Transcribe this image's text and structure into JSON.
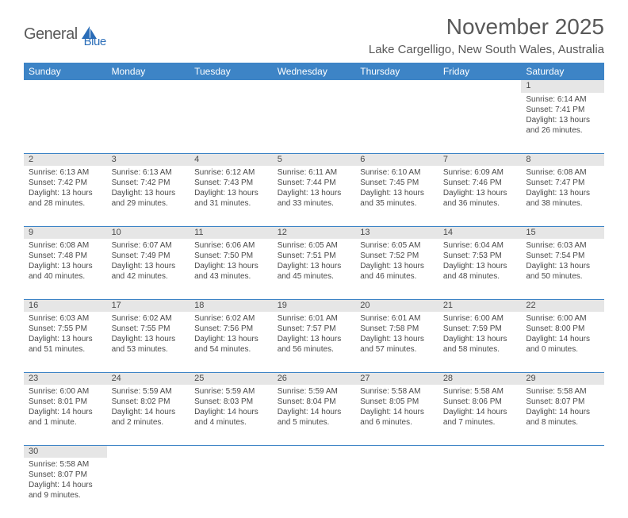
{
  "logo": {
    "part1": "General",
    "part2": "Blue"
  },
  "title": "November 2025",
  "location": "Lake Cargelligo, New South Wales, Australia",
  "colors": {
    "header_bg": "#3d84c6",
    "header_text": "#ffffff",
    "daynum_bg": "#e6e6e6",
    "text": "#4a4a4a",
    "rule": "#3d84c6",
    "logo_gray": "#5a5a5a",
    "logo_blue": "#2a6db8"
  },
  "days_of_week": [
    "Sunday",
    "Monday",
    "Tuesday",
    "Wednesday",
    "Thursday",
    "Friday",
    "Saturday"
  ],
  "weeks": [
    [
      null,
      null,
      null,
      null,
      null,
      null,
      {
        "n": "1",
        "sr": "Sunrise: 6:14 AM",
        "ss": "Sunset: 7:41 PM",
        "d1": "Daylight: 13 hours",
        "d2": "and 26 minutes."
      }
    ],
    [
      {
        "n": "2",
        "sr": "Sunrise: 6:13 AM",
        "ss": "Sunset: 7:42 PM",
        "d1": "Daylight: 13 hours",
        "d2": "and 28 minutes."
      },
      {
        "n": "3",
        "sr": "Sunrise: 6:13 AM",
        "ss": "Sunset: 7:42 PM",
        "d1": "Daylight: 13 hours",
        "d2": "and 29 minutes."
      },
      {
        "n": "4",
        "sr": "Sunrise: 6:12 AM",
        "ss": "Sunset: 7:43 PM",
        "d1": "Daylight: 13 hours",
        "d2": "and 31 minutes."
      },
      {
        "n": "5",
        "sr": "Sunrise: 6:11 AM",
        "ss": "Sunset: 7:44 PM",
        "d1": "Daylight: 13 hours",
        "d2": "and 33 minutes."
      },
      {
        "n": "6",
        "sr": "Sunrise: 6:10 AM",
        "ss": "Sunset: 7:45 PM",
        "d1": "Daylight: 13 hours",
        "d2": "and 35 minutes."
      },
      {
        "n": "7",
        "sr": "Sunrise: 6:09 AM",
        "ss": "Sunset: 7:46 PM",
        "d1": "Daylight: 13 hours",
        "d2": "and 36 minutes."
      },
      {
        "n": "8",
        "sr": "Sunrise: 6:08 AM",
        "ss": "Sunset: 7:47 PM",
        "d1": "Daylight: 13 hours",
        "d2": "and 38 minutes."
      }
    ],
    [
      {
        "n": "9",
        "sr": "Sunrise: 6:08 AM",
        "ss": "Sunset: 7:48 PM",
        "d1": "Daylight: 13 hours",
        "d2": "and 40 minutes."
      },
      {
        "n": "10",
        "sr": "Sunrise: 6:07 AM",
        "ss": "Sunset: 7:49 PM",
        "d1": "Daylight: 13 hours",
        "d2": "and 42 minutes."
      },
      {
        "n": "11",
        "sr": "Sunrise: 6:06 AM",
        "ss": "Sunset: 7:50 PM",
        "d1": "Daylight: 13 hours",
        "d2": "and 43 minutes."
      },
      {
        "n": "12",
        "sr": "Sunrise: 6:05 AM",
        "ss": "Sunset: 7:51 PM",
        "d1": "Daylight: 13 hours",
        "d2": "and 45 minutes."
      },
      {
        "n": "13",
        "sr": "Sunrise: 6:05 AM",
        "ss": "Sunset: 7:52 PM",
        "d1": "Daylight: 13 hours",
        "d2": "and 46 minutes."
      },
      {
        "n": "14",
        "sr": "Sunrise: 6:04 AM",
        "ss": "Sunset: 7:53 PM",
        "d1": "Daylight: 13 hours",
        "d2": "and 48 minutes."
      },
      {
        "n": "15",
        "sr": "Sunrise: 6:03 AM",
        "ss": "Sunset: 7:54 PM",
        "d1": "Daylight: 13 hours",
        "d2": "and 50 minutes."
      }
    ],
    [
      {
        "n": "16",
        "sr": "Sunrise: 6:03 AM",
        "ss": "Sunset: 7:55 PM",
        "d1": "Daylight: 13 hours",
        "d2": "and 51 minutes."
      },
      {
        "n": "17",
        "sr": "Sunrise: 6:02 AM",
        "ss": "Sunset: 7:55 PM",
        "d1": "Daylight: 13 hours",
        "d2": "and 53 minutes."
      },
      {
        "n": "18",
        "sr": "Sunrise: 6:02 AM",
        "ss": "Sunset: 7:56 PM",
        "d1": "Daylight: 13 hours",
        "d2": "and 54 minutes."
      },
      {
        "n": "19",
        "sr": "Sunrise: 6:01 AM",
        "ss": "Sunset: 7:57 PM",
        "d1": "Daylight: 13 hours",
        "d2": "and 56 minutes."
      },
      {
        "n": "20",
        "sr": "Sunrise: 6:01 AM",
        "ss": "Sunset: 7:58 PM",
        "d1": "Daylight: 13 hours",
        "d2": "and 57 minutes."
      },
      {
        "n": "21",
        "sr": "Sunrise: 6:00 AM",
        "ss": "Sunset: 7:59 PM",
        "d1": "Daylight: 13 hours",
        "d2": "and 58 minutes."
      },
      {
        "n": "22",
        "sr": "Sunrise: 6:00 AM",
        "ss": "Sunset: 8:00 PM",
        "d1": "Daylight: 14 hours",
        "d2": "and 0 minutes."
      }
    ],
    [
      {
        "n": "23",
        "sr": "Sunrise: 6:00 AM",
        "ss": "Sunset: 8:01 PM",
        "d1": "Daylight: 14 hours",
        "d2": "and 1 minute."
      },
      {
        "n": "24",
        "sr": "Sunrise: 5:59 AM",
        "ss": "Sunset: 8:02 PM",
        "d1": "Daylight: 14 hours",
        "d2": "and 2 minutes."
      },
      {
        "n": "25",
        "sr": "Sunrise: 5:59 AM",
        "ss": "Sunset: 8:03 PM",
        "d1": "Daylight: 14 hours",
        "d2": "and 4 minutes."
      },
      {
        "n": "26",
        "sr": "Sunrise: 5:59 AM",
        "ss": "Sunset: 8:04 PM",
        "d1": "Daylight: 14 hours",
        "d2": "and 5 minutes."
      },
      {
        "n": "27",
        "sr": "Sunrise: 5:58 AM",
        "ss": "Sunset: 8:05 PM",
        "d1": "Daylight: 14 hours",
        "d2": "and 6 minutes."
      },
      {
        "n": "28",
        "sr": "Sunrise: 5:58 AM",
        "ss": "Sunset: 8:06 PM",
        "d1": "Daylight: 14 hours",
        "d2": "and 7 minutes."
      },
      {
        "n": "29",
        "sr": "Sunrise: 5:58 AM",
        "ss": "Sunset: 8:07 PM",
        "d1": "Daylight: 14 hours",
        "d2": "and 8 minutes."
      }
    ],
    [
      {
        "n": "30",
        "sr": "Sunrise: 5:58 AM",
        "ss": "Sunset: 8:07 PM",
        "d1": "Daylight: 14 hours",
        "d2": "and 9 minutes."
      },
      null,
      null,
      null,
      null,
      null,
      null
    ]
  ]
}
